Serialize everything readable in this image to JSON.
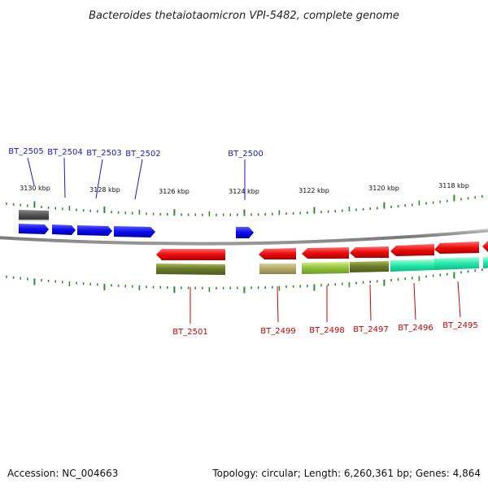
{
  "title": "Bacteroides thetaiotaomicron VPI-5482, complete genome",
  "footer": {
    "accession": "Accession: NC_004663",
    "summary": "Topology: circular; Length: 6,260,361 bp; Genes: 4,864"
  },
  "colors": {
    "forward_label": "#1a1acc",
    "reverse_label": "#cc0000",
    "forward_gene": "#0a0aee",
    "reverse_gene": "#ee0a0a",
    "backbone": "#888888",
    "tick": "#2e8b2e"
  },
  "scale_labels": [
    "3130 kbp",
    "3128 kbp",
    "3126 kbp",
    "3124 kbp",
    "3122 kbp",
    "3120 kbp",
    "3118 kbp"
  ],
  "forward_labels": [
    "BT_2505",
    "BT_2504",
    "BT_2503",
    "BT_2502",
    "BT_2500"
  ],
  "reverse_labels": [
    "BT_2501",
    "BT_2499",
    "BT_2498",
    "BT_2497",
    "BT_2496",
    "BT_2495"
  ]
}
